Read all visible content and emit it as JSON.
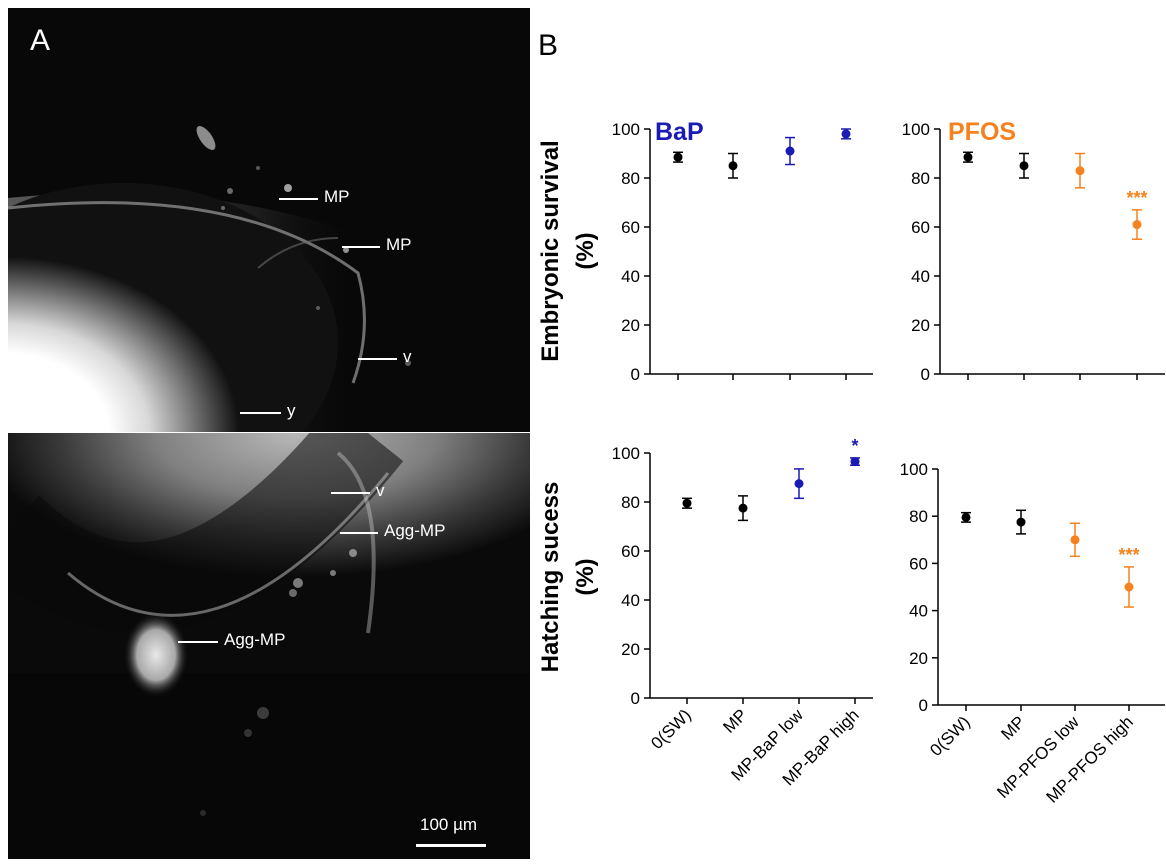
{
  "panel_a": {
    "letter": "A",
    "top_labels": [
      "MP",
      "MP",
      "v",
      "y"
    ],
    "bottom_labels": [
      "v",
      "Agg-MP",
      "Agg-MP"
    ],
    "scale_bar": "100 µm"
  },
  "panel_b": {
    "letter": "B",
    "row_labels": [
      {
        "line1": "Embryonic survival",
        "line2": "(%)"
      },
      {
        "line1": "Hatching sucess",
        "line2": "(%)"
      }
    ]
  },
  "colors": {
    "control": "#000000",
    "bap": "#1a1ab4",
    "pfos": "#f5821f"
  },
  "chart_data": [
    {
      "type": "scatter",
      "title": "BaP",
      "ylabel": "Embryonic survival (%)",
      "ylim": [
        0,
        100
      ],
      "yticks": [
        0,
        20,
        40,
        60,
        80,
        100
      ],
      "categories": [
        "0(SW)",
        "MP",
        "MP-BaP low",
        "MP-BaP high"
      ],
      "values": [
        88.5,
        85,
        91,
        98
      ],
      "errors": [
        2,
        5,
        5.5,
        2
      ],
      "point_colors": [
        "#000000",
        "#000000",
        "#1a1ab4",
        "#1a1ab4"
      ],
      "significance": [
        "",
        "",
        "",
        ""
      ]
    },
    {
      "type": "scatter",
      "title": "PFOS",
      "ylabel": "Embryonic survival (%)",
      "ylim": [
        0,
        100
      ],
      "yticks": [
        0,
        20,
        40,
        60,
        80,
        100
      ],
      "categories": [
        "0(SW)",
        "MP",
        "MP-PFOS low",
        "MP-PFOS high"
      ],
      "values": [
        88.5,
        85,
        83,
        61
      ],
      "errors": [
        2,
        5,
        7,
        6
      ],
      "point_colors": [
        "#000000",
        "#000000",
        "#f5821f",
        "#f5821f"
      ],
      "significance": [
        "",
        "",
        "",
        "***"
      ]
    },
    {
      "type": "scatter",
      "title": "",
      "ylabel": "Hatching sucess (%)",
      "ylim": [
        0,
        100
      ],
      "yticks": [
        0,
        20,
        40,
        60,
        80,
        100
      ],
      "categories": [
        "0(SW)",
        "MP",
        "MP-BaP low",
        "MP-BaP high"
      ],
      "values": [
        79.5,
        77.5,
        87.5,
        96.5
      ],
      "errors": [
        2,
        5,
        6,
        1.5
      ],
      "point_colors": [
        "#000000",
        "#000000",
        "#1a1ab4",
        "#1a1ab4"
      ],
      "significance": [
        "",
        "",
        "",
        "*"
      ]
    },
    {
      "type": "scatter",
      "title": "",
      "ylabel": "Hatching sucess (%)",
      "ylim": [
        0,
        100
      ],
      "yticks": [
        0,
        20,
        40,
        60,
        80,
        100
      ],
      "categories": [
        "0(SW)",
        "MP",
        "MP-PFOS low",
        "MP-PFOS high"
      ],
      "values": [
        79.5,
        77.5,
        70,
        50
      ],
      "errors": [
        2,
        5,
        7,
        8.5
      ],
      "point_colors": [
        "#000000",
        "#000000",
        "#f5821f",
        "#f5821f"
      ],
      "significance": [
        "",
        "",
        "",
        "***"
      ]
    }
  ]
}
